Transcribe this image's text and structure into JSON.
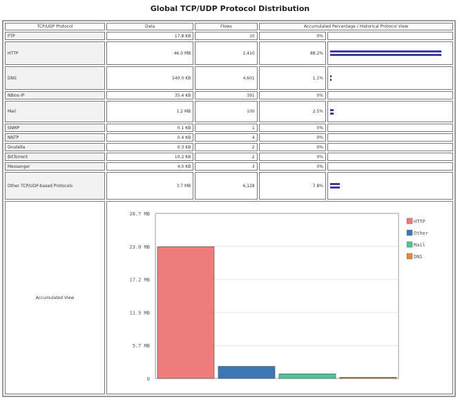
{
  "title": "Global TCP/UDP Protocol Distribution",
  "headers": [
    "TCP/UDP Protocol",
    "Data",
    "Flows",
    "Accumulated Percentage / Historical Protocol View"
  ],
  "rows": [
    {
      "name": "FTP",
      "data": "17.8 KB",
      "flows": "10",
      "pct": "0%",
      "bar": 0,
      "size": "sm"
    },
    {
      "name": "HTTP",
      "data": "46.0 MB",
      "flows": "1,410",
      "pct": "88.2%",
      "bar": 88.2,
      "size": "tall"
    },
    {
      "name": "DNS",
      "data": "540.0 KB",
      "flows": "4,601",
      "pct": "1.1%",
      "bar": 1.1,
      "size": "tall"
    },
    {
      "name": "NBios IP",
      "data": "35.4 KB",
      "flows": "391",
      "pct": "0%",
      "bar": 0,
      "size": "sm"
    },
    {
      "name": "Mail",
      "data": "1.2 MB",
      "flows": "100",
      "pct": "2.5%",
      "bar": 2.5,
      "size": "mid"
    },
    {
      "name": "SNMP",
      "data": "0.1 KB",
      "flows": "1",
      "pct": "0%",
      "bar": 0,
      "size": "sm"
    },
    {
      "name": "NNTP",
      "data": "0.4 KB",
      "flows": "4",
      "pct": "0%",
      "bar": 0,
      "size": "sm"
    },
    {
      "name": "Gnutella",
      "data": "0.3 KB",
      "flows": "2",
      "pct": "0%",
      "bar": 0,
      "size": "sm"
    },
    {
      "name": "BitTorrent",
      "data": "10.2 KB",
      "flows": "2",
      "pct": "0%",
      "bar": 0,
      "size": "sm"
    },
    {
      "name": "Messenger",
      "data": "4.0 KB",
      "flows": "3",
      "pct": "0%",
      "bar": 0,
      "size": "sm"
    },
    {
      "name": "Other TCP/UDP-based Protocols",
      "data": "3.7 MB",
      "flows": "6,128",
      "pct": "7.8%",
      "bar": 7.8,
      "size": "oth"
    }
  ],
  "accumulated_label": "Accumulated View",
  "chart_data": {
    "type": "bar",
    "categories": [
      "HTTP",
      "Other",
      "Mail",
      "DNS"
    ],
    "values": [
      22.9,
      2.1,
      0.8,
      0.2
    ],
    "colors": [
      "#ef7b7b",
      "#3b78b4",
      "#4cc597",
      "#e08a3c"
    ],
    "yticks": [
      "0",
      "5.7 MB",
      "11.5 MB",
      "17.2 MB",
      "23.0 MB",
      "28.7 MB"
    ],
    "ylim": [
      0,
      28.7
    ],
    "unit": "MB",
    "legend": "right"
  }
}
